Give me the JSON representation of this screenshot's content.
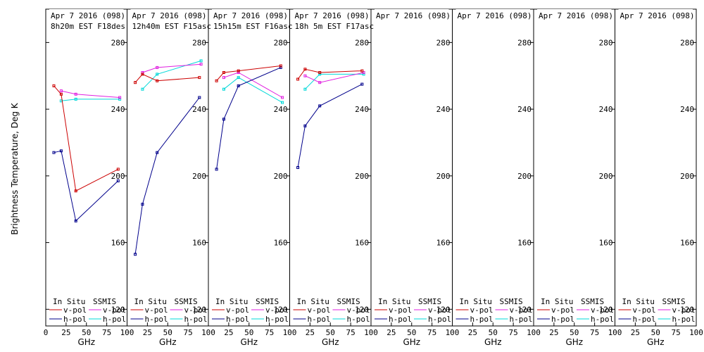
{
  "chart_data": {
    "type": "line",
    "ylabel": "Brightness Temperature, Deg K",
    "ylim": [
      110,
      300
    ],
    "yticks": [
      120,
      160,
      200,
      240,
      280
    ],
    "xlim": [
      0,
      100
    ],
    "xtick_labels": [
      "0",
      "25",
      "50",
      "75",
      "100"
    ],
    "xtick_labels_inner": [
      "25",
      "50",
      "75",
      "100"
    ],
    "xlabel": "GHz",
    "legend": {
      "insitu_header": "In Situ",
      "ssmis_header": "SSMIS",
      "vpol": "v-pol",
      "hpol": "h-pol"
    },
    "colors": {
      "insitu_v": "#cc0000",
      "insitu_h": "#00008b",
      "ssmis_v": "#e020e0",
      "ssmis_h": "#00d8d8"
    },
    "panels": [
      {
        "date": "Apr 7 2016 (098)",
        "time": "8h20m EST F18des",
        "series": {
          "insitu_v": {
            "x": [
              10,
              19,
              37,
              89
            ],
            "y": [
              254,
              249,
              191,
              204
            ]
          },
          "insitu_h": {
            "x": [
              10,
              19,
              37,
              89
            ],
            "y": [
              214,
              215,
              173,
              197
            ]
          },
          "ssmis_v": {
            "x": [
              19,
              37,
              91
            ],
            "y": [
              251,
              249,
              247
            ]
          },
          "ssmis_h": {
            "x": [
              19,
              37,
              91
            ],
            "y": [
              245,
              246,
              246
            ]
          }
        }
      },
      {
        "date": "Apr 7 2016 (098)",
        "time": "12h40m EST F15asc",
        "series": {
          "insitu_v": {
            "x": [
              10,
              19,
              37,
              89
            ],
            "y": [
              256,
              261,
              257,
              259
            ]
          },
          "insitu_h": {
            "x": [
              10,
              19,
              37,
              89
            ],
            "y": [
              153,
              183,
              214,
              247
            ]
          },
          "ssmis_v": {
            "x": [
              19,
              37,
              91
            ],
            "y": [
              262,
              265,
              267
            ]
          },
          "ssmis_h": {
            "x": [
              19,
              37,
              91
            ],
            "y": [
              252,
              261,
              269
            ]
          }
        }
      },
      {
        "date": "Apr 7 2016 (098)",
        "time": "15h15m EST F16asc",
        "series": {
          "insitu_v": {
            "x": [
              10,
              19,
              37,
              89
            ],
            "y": [
              257,
              262,
              263,
              266
            ]
          },
          "insitu_h": {
            "x": [
              10,
              19,
              37,
              89
            ],
            "y": [
              204,
              234,
              254,
              265
            ]
          },
          "ssmis_v": {
            "x": [
              19,
              37,
              91
            ],
            "y": [
              259,
              262,
              247
            ]
          },
          "ssmis_h": {
            "x": [
              19,
              37,
              91
            ],
            "y": [
              252,
              259,
              244
            ]
          }
        }
      },
      {
        "date": "Apr 7 2016 (098)",
        "time": "18h 5m EST F17asc",
        "series": {
          "insitu_v": {
            "x": [
              10,
              19,
              37,
              89
            ],
            "y": [
              258,
              264,
              262,
              263
            ]
          },
          "insitu_h": {
            "x": [
              10,
              19,
              37,
              89
            ],
            "y": [
              205,
              230,
              242,
              255
            ]
          },
          "ssmis_v": {
            "x": [
              19,
              37,
              91
            ],
            "y": [
              260,
              256,
              262
            ]
          },
          "ssmis_h": {
            "x": [
              19,
              37,
              91
            ],
            "y": [
              252,
              261,
              261
            ]
          }
        }
      },
      {
        "date": "Apr 7 2016 (098)",
        "time": "",
        "series": {}
      },
      {
        "date": "Apr 7 2016 (098)",
        "time": "",
        "series": {}
      },
      {
        "date": "Apr 7 2016 (098)",
        "time": "",
        "series": {}
      },
      {
        "date": "Apr 7 2016 (098)",
        "time": "",
        "series": {}
      }
    ]
  }
}
